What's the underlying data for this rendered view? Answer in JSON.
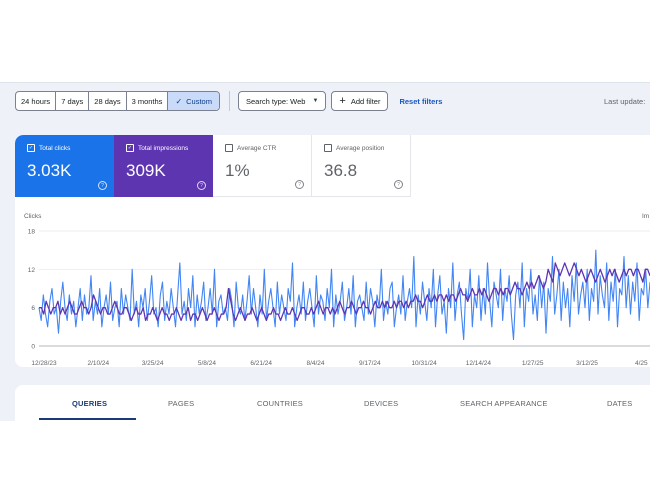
{
  "toolbar": {
    "ranges": [
      "24 hours",
      "7 days",
      "28 days",
      "3 months"
    ],
    "custom_label": "Custom",
    "search_type": "Search type: Web",
    "add_filter": "Add filter",
    "reset_filters": "Reset filters",
    "last_update": "Last update:"
  },
  "metrics": {
    "clicks": {
      "label": "Total clicks",
      "value": "3.03K",
      "color": "#1a73e8",
      "checked": true
    },
    "impressions": {
      "label": "Total impressions",
      "value": "309K",
      "color": "#5e35b1",
      "checked": true
    },
    "ctr": {
      "label": "Average CTR",
      "value": "1%",
      "checked": false
    },
    "position": {
      "label": "Average position",
      "value": "36.8",
      "checked": false
    }
  },
  "tabs": [
    "QUERIES",
    "PAGES",
    "COUNTRIES",
    "DEVICES",
    "SEARCH APPEARANCE",
    "DATES"
  ],
  "chart_data": {
    "type": "line",
    "ylabel": "Clicks",
    "ylabel_right": "Im",
    "yticks": [
      0,
      6,
      12,
      18
    ],
    "ylim": [
      0,
      18
    ],
    "x_tick_labels": [
      "12/28/23",
      "2/10/24",
      "3/25/24",
      "5/8/24",
      "6/21/24",
      "8/4/24",
      "9/17/24",
      "10/31/24",
      "12/14/24",
      "1/27/25",
      "3/12/25",
      "4/25"
    ],
    "grid": true,
    "series": [
      {
        "name": "Clicks",
        "color": "#4285f4",
        "values": [
          6,
          4,
          8,
          5,
          3,
          7,
          9,
          5,
          6,
          2,
          7,
          10,
          6,
          4,
          8,
          5,
          7,
          3,
          6,
          9,
          4,
          8,
          5,
          6,
          11,
          4,
          7,
          5,
          9,
          3,
          6,
          8,
          5,
          10,
          4,
          6,
          7,
          3,
          9,
          5,
          8,
          6,
          4,
          12,
          5,
          7,
          3,
          8,
          6,
          9,
          4,
          7,
          11,
          5,
          6,
          3,
          8,
          10,
          4,
          7,
          5,
          9,
          6,
          3,
          8,
          13,
          5,
          7,
          4,
          9,
          6,
          11,
          3,
          8,
          5,
          7,
          10,
          4,
          6,
          9,
          5,
          12,
          3,
          7,
          8,
          5,
          6,
          4,
          9,
          7,
          3,
          10,
          6,
          5,
          8,
          4,
          7,
          11,
          5,
          9,
          6,
          3,
          8,
          5,
          12,
          4,
          7,
          9,
          6,
          3,
          10,
          5,
          8,
          6,
          4,
          9,
          7,
          13,
          3,
          6,
          8,
          5,
          10,
          4,
          7,
          9,
          6,
          3,
          11,
          5,
          8,
          7,
          4,
          9,
          6,
          12,
          3,
          8,
          5,
          7,
          10,
          4,
          6,
          9,
          5,
          11,
          3,
          7,
          8,
          6,
          4,
          10,
          5,
          9,
          7,
          3,
          8,
          6,
          12,
          4,
          7,
          5,
          9,
          10,
          3,
          6,
          8,
          5,
          11,
          4,
          7,
          9,
          6,
          14,
          3,
          8,
          5,
          10,
          7,
          4,
          9,
          6,
          12,
          3,
          8,
          11,
          5,
          7,
          2,
          9,
          6,
          13,
          4,
          8,
          10,
          5,
          1,
          9,
          7,
          12,
          3,
          8,
          6,
          11,
          4,
          9,
          5,
          13,
          7,
          3,
          10,
          8,
          6,
          12,
          4,
          9,
          7,
          11,
          5,
          1,
          8,
          10,
          6,
          13,
          3,
          9,
          7,
          12,
          5,
          8,
          4,
          11,
          6,
          10,
          2,
          9,
          7,
          14,
          5,
          8,
          12,
          4,
          10,
          6,
          9,
          3,
          11,
          7,
          13,
          5,
          8,
          10,
          6,
          12,
          4,
          9,
          7,
          15,
          5,
          11,
          8,
          6,
          13,
          4,
          10,
          7,
          12,
          3,
          9,
          8,
          14,
          6,
          11,
          5,
          10,
          7,
          13,
          4,
          9,
          8,
          12,
          6,
          10
        ],
        "comment_removed": ""
      },
      {
        "name": "Impressions",
        "color": "#5e35b1",
        "values": [
          6,
          6,
          5,
          7,
          6,
          5,
          6,
          6,
          7,
          5,
          6,
          5,
          6,
          7,
          6,
          5,
          5,
          6,
          7,
          6,
          6,
          5,
          6,
          8,
          7,
          6,
          5,
          6,
          6,
          5,
          5,
          6,
          7,
          6,
          5,
          5,
          6,
          6,
          5,
          4,
          5,
          6,
          5,
          5,
          6,
          4,
          5,
          5,
          6,
          5,
          4,
          5,
          6,
          5,
          5,
          4,
          5,
          5,
          6,
          5,
          4,
          5,
          5,
          6,
          4,
          5,
          5,
          4,
          5,
          6,
          5,
          4,
          5,
          5,
          6,
          5,
          4,
          5,
          5,
          6,
          9,
          7,
          5,
          4,
          5,
          6,
          5,
          4,
          5,
          5,
          6,
          5,
          4,
          5,
          6,
          5,
          4,
          5,
          5,
          6,
          5,
          5,
          4,
          5,
          6,
          5,
          5,
          6,
          5,
          4,
          5,
          6,
          6,
          5,
          5,
          6,
          5,
          6,
          7,
          6,
          5,
          6,
          6,
          5,
          6,
          5,
          6,
          7,
          6,
          5,
          6,
          6,
          7,
          6,
          5,
          6,
          6,
          7,
          6,
          6,
          5,
          6,
          7,
          6,
          6,
          7,
          6,
          7,
          6,
          6,
          7,
          6,
          7,
          7,
          6,
          7,
          6,
          7,
          7,
          8,
          7,
          7,
          6,
          7,
          8,
          7,
          7,
          8,
          7,
          8,
          8,
          7,
          8,
          7,
          8,
          8,
          7,
          8,
          9,
          8,
          8,
          7,
          8,
          9,
          8,
          8,
          9,
          8,
          9,
          8,
          7,
          8,
          9,
          9,
          8,
          9,
          8,
          9,
          9,
          8,
          9,
          10,
          9,
          9,
          8,
          9,
          10,
          9,
          10,
          9,
          10,
          11,
          10,
          9,
          10,
          12,
          11,
          10,
          13,
          12,
          11,
          12,
          13,
          12,
          11,
          12,
          13,
          12,
          11,
          12,
          11,
          10,
          11,
          12,
          11,
          10,
          11,
          12,
          11,
          10,
          11,
          12,
          11,
          12,
          11,
          10,
          11,
          12,
          11,
          12,
          12,
          11,
          12,
          12,
          11,
          10,
          12,
          12,
          11
        ]
      }
    ]
  }
}
